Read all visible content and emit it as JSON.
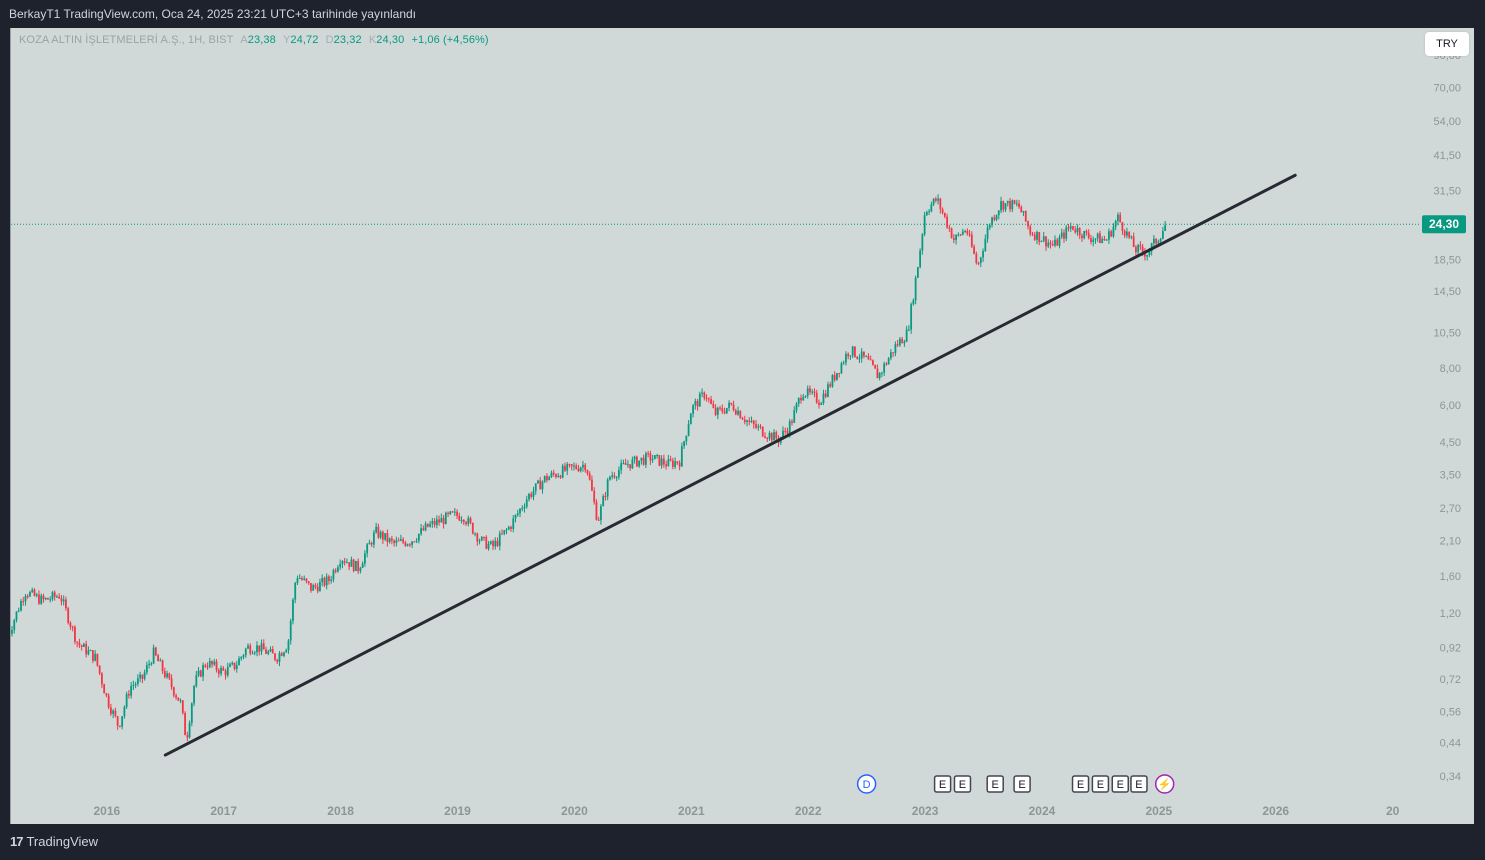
{
  "header": {
    "published": "BerkayT1 TradingView.com, Oca 24, 2025 23:21 UTC+3 tarihinde yayınlandı"
  },
  "legend": {
    "symbol": "KOZA ALTIN İŞLETMELERİ A.Ş., 1H, BIST",
    "open_label": "A",
    "open": "23,38",
    "high_label": "Y",
    "high": "24,72",
    "low_label": "D",
    "low": "23,32",
    "close_label": "K",
    "close": "24,30",
    "change": "+1,06 (+4,56%)"
  },
  "currency_button": "TRY",
  "footer": {
    "brand": "TradingView",
    "brand_icon": "tradingview-logo-icon"
  },
  "colors": {
    "up": "#089981",
    "down": "#f23645",
    "trendline": "#262a33",
    "background": "#d1d9d8"
  },
  "chart_data": {
    "type": "candlestick",
    "interval": "1W",
    "scale": "log",
    "ylim": [
      0.31,
      95
    ],
    "xlim": [
      "2015-03",
      "2027-03"
    ],
    "y_ticks": [
      "90,00",
      "70,00",
      "54,00",
      "41,50",
      "31,50",
      "18,50",
      "14,50",
      "10,50",
      "8,00",
      "6,00",
      "4,50",
      "3,50",
      "2,70",
      "2,10",
      "1,60",
      "1,20",
      "0,92",
      "0,72",
      "0,56",
      "0,44",
      "0,34"
    ],
    "y_tick_values": [
      90,
      70,
      54,
      41.5,
      31.5,
      18.5,
      14.5,
      10.5,
      8,
      6,
      4.5,
      3.5,
      2.7,
      2.1,
      1.6,
      1.2,
      0.92,
      0.72,
      0.56,
      0.44,
      0.34
    ],
    "x_ticks": [
      "2016",
      "2017",
      "2018",
      "2019",
      "2020",
      "2021",
      "2022",
      "2023",
      "2024",
      "2025",
      "2026",
      "20"
    ],
    "x_tick_values": [
      2016,
      2017,
      2018,
      2019,
      2020,
      2021,
      2022,
      2023,
      2024,
      2025,
      2026,
      2027
    ],
    "last_price": {
      "label": "24,30",
      "value": 24.3
    },
    "trendline": {
      "start": {
        "x": "2016-07",
        "y": 0.4
      },
      "end": {
        "x": "2026-03",
        "y": 35.5
      }
    },
    "price_path": [
      [
        2015.15,
        1.0
      ],
      [
        2015.3,
        1.42
      ],
      [
        2015.45,
        1.32
      ],
      [
        2015.6,
        1.38
      ],
      [
        2015.75,
        0.95
      ],
      [
        2015.9,
        0.85
      ],
      [
        2016.0,
        0.62
      ],
      [
        2016.1,
        0.5
      ],
      [
        2016.2,
        0.68
      ],
      [
        2016.3,
        0.72
      ],
      [
        2016.4,
        0.88
      ],
      [
        2016.52,
        0.72
      ],
      [
        2016.63,
        0.6
      ],
      [
        2016.68,
        0.45
      ],
      [
        2016.75,
        0.7
      ],
      [
        2016.85,
        0.82
      ],
      [
        2017.0,
        0.76
      ],
      [
        2017.1,
        0.8
      ],
      [
        2017.2,
        0.92
      ],
      [
        2017.3,
        0.92
      ],
      [
        2017.45,
        0.85
      ],
      [
        2017.55,
        0.95
      ],
      [
        2017.62,
        1.62
      ],
      [
        2017.75,
        1.45
      ],
      [
        2017.9,
        1.55
      ],
      [
        2018.0,
        1.85
      ],
      [
        2018.15,
        1.7
      ],
      [
        2018.3,
        2.25
      ],
      [
        2018.45,
        2.05
      ],
      [
        2018.6,
        2.1
      ],
      [
        2018.75,
        2.35
      ],
      [
        2018.95,
        2.55
      ],
      [
        2019.05,
        2.55
      ],
      [
        2019.2,
        2.1
      ],
      [
        2019.3,
        2.0
      ],
      [
        2019.45,
        2.35
      ],
      [
        2019.6,
        2.95
      ],
      [
        2019.75,
        3.4
      ],
      [
        2019.9,
        3.6
      ],
      [
        2020.1,
        3.8
      ],
      [
        2020.2,
        2.45
      ],
      [
        2020.3,
        3.45
      ],
      [
        2020.45,
        3.8
      ],
      [
        2020.65,
        4.0
      ],
      [
        2020.8,
        3.8
      ],
      [
        2020.9,
        3.9
      ],
      [
        2021.0,
        5.8
      ],
      [
        2021.12,
        6.6
      ],
      [
        2021.2,
        5.6
      ],
      [
        2021.35,
        6.0
      ],
      [
        2021.5,
        5.2
      ],
      [
        2021.65,
        4.8
      ],
      [
        2021.75,
        4.6
      ],
      [
        2021.85,
        5.2
      ],
      [
        2021.95,
        6.7
      ],
      [
        2022.1,
        6.2
      ],
      [
        2022.2,
        7.2
      ],
      [
        2022.35,
        9.2
      ],
      [
        2022.5,
        8.5
      ],
      [
        2022.6,
        7.5
      ],
      [
        2022.75,
        9.5
      ],
      [
        2022.85,
        10.5
      ],
      [
        2022.95,
        19.0
      ],
      [
        2023.0,
        27.0
      ],
      [
        2023.1,
        29.5
      ],
      [
        2023.25,
        21.5
      ],
      [
        2023.35,
        23.5
      ],
      [
        2023.45,
        17.5
      ],
      [
        2023.55,
        24.5
      ],
      [
        2023.65,
        28.5
      ],
      [
        2023.8,
        28.0
      ],
      [
        2023.9,
        23.0
      ],
      [
        2024.0,
        21.8
      ],
      [
        2024.1,
        20.5
      ],
      [
        2024.25,
        24.0
      ],
      [
        2024.4,
        22.0
      ],
      [
        2024.55,
        21.5
      ],
      [
        2024.65,
        25.5
      ],
      [
        2024.8,
        20.0
      ],
      [
        2024.9,
        19.5
      ],
      [
        2025.0,
        22.0
      ],
      [
        2025.06,
        24.3
      ]
    ],
    "events": [
      {
        "x": 2022.5,
        "label": "D",
        "type": "dividend"
      },
      {
        "x": 2023.15,
        "label": "E",
        "type": "earnings"
      },
      {
        "x": 2023.32,
        "label": "E",
        "type": "earnings"
      },
      {
        "x": 2023.6,
        "label": "E",
        "type": "earnings"
      },
      {
        "x": 2023.83,
        "label": "E",
        "type": "earnings"
      },
      {
        "x": 2024.33,
        "label": "E",
        "type": "earnings"
      },
      {
        "x": 2024.5,
        "label": "E",
        "type": "earnings"
      },
      {
        "x": 2024.67,
        "label": "E",
        "type": "earnings"
      },
      {
        "x": 2024.83,
        "label": "E",
        "type": "earnings"
      },
      {
        "x": 2025.05,
        "label": "⚡",
        "type": "split"
      }
    ]
  }
}
